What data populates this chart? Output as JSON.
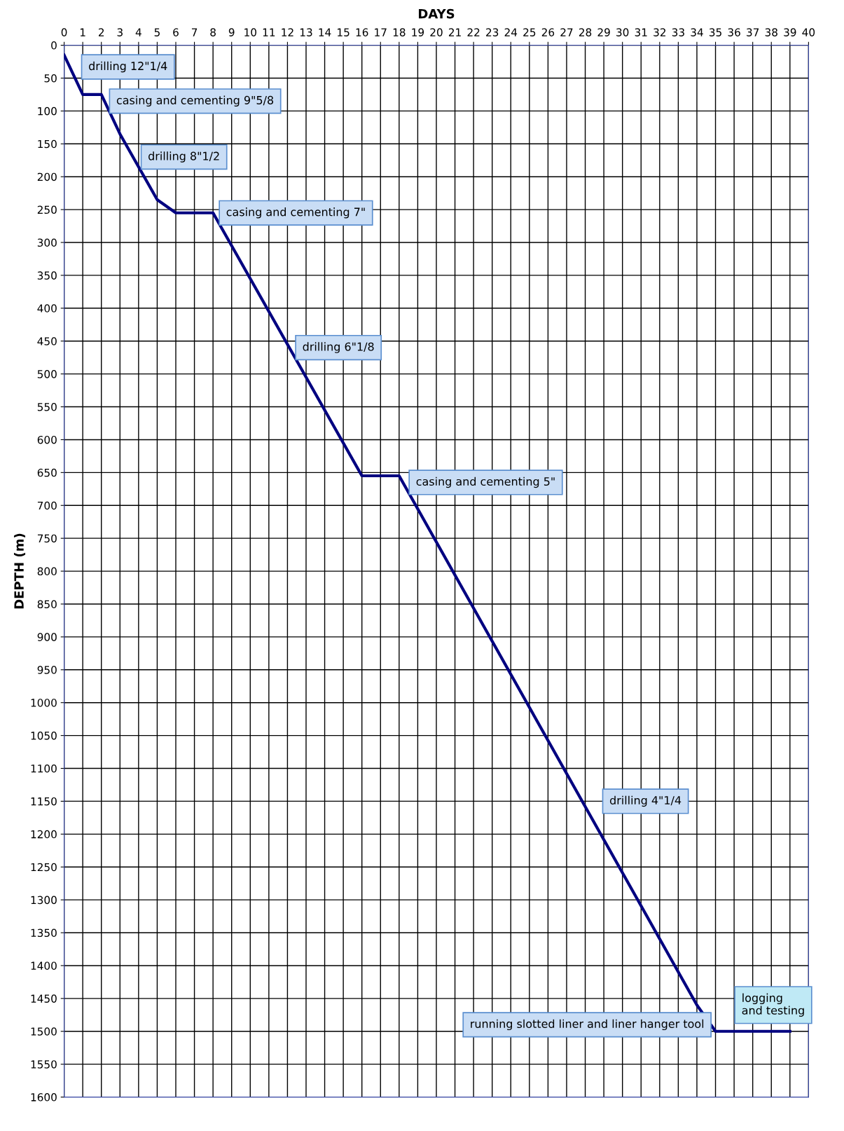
{
  "chart_data": {
    "type": "line",
    "xlabel": "DAYS",
    "ylabel": "DEPTH (m)",
    "x": [
      0,
      1,
      2,
      3,
      5,
      6,
      8,
      16,
      18,
      34,
      35,
      39
    ],
    "series": [
      {
        "color": "#000080",
        "values": [
          15,
          75,
          75,
          135,
          235,
          255,
          255,
          655,
          655,
          1460,
          1500,
          1500
        ]
      }
    ],
    "xlim": [
      0,
      40
    ],
    "xticks": [
      0,
      1,
      2,
      3,
      4,
      5,
      6,
      7,
      8,
      9,
      10,
      11,
      12,
      13,
      14,
      15,
      16,
      17,
      18,
      19,
      20,
      21,
      22,
      23,
      24,
      25,
      26,
      27,
      28,
      29,
      30,
      31,
      32,
      33,
      34,
      35,
      36,
      37,
      38,
      39,
      40
    ],
    "ylim": [
      1600,
      0
    ],
    "yticks": [
      0,
      50,
      100,
      150,
      200,
      250,
      300,
      350,
      400,
      450,
      500,
      550,
      600,
      650,
      700,
      750,
      800,
      850,
      900,
      950,
      1000,
      1050,
      1100,
      1150,
      1200,
      1250,
      1300,
      1350,
      1400,
      1450,
      1500,
      1550,
      1600
    ],
    "grid": true,
    "marker": "none",
    "line_style": "solid",
    "annotations": [
      "drilling 12\"1/4",
      "casing and cementing 9\"5/8",
      "drilling 8\"1/2",
      "casing and cementing 7\"",
      "drilling 6\"1/8",
      "casing and cementing 5\"",
      "drilling 4\"1/4",
      "running slotted liner and liner hanger tool",
      "logging\nand testing"
    ]
  }
}
